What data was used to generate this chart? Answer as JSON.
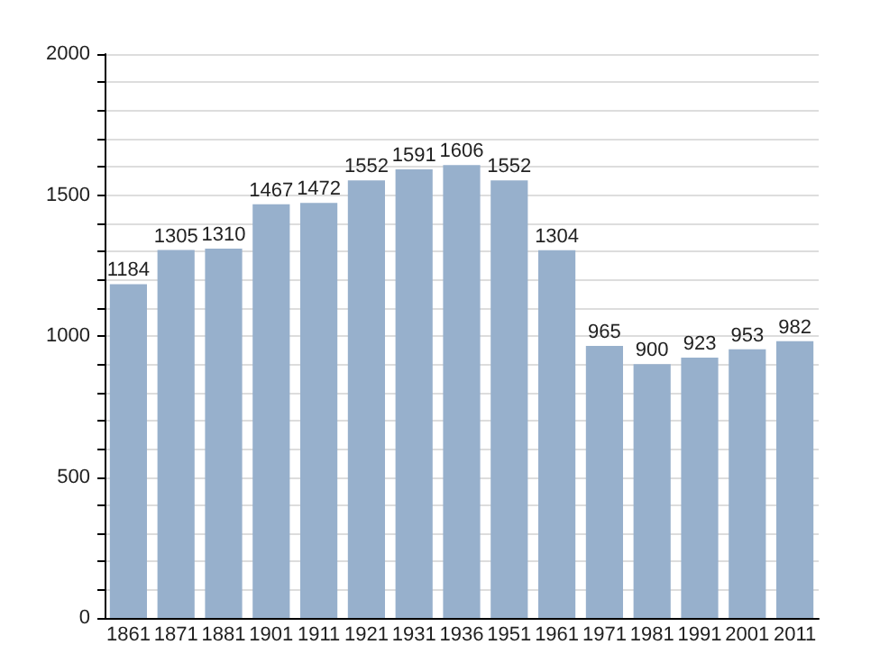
{
  "chart_data": {
    "type": "bar",
    "categories": [
      "1861",
      "1871",
      "1881",
      "1901",
      "1911",
      "1921",
      "1931",
      "1936",
      "1951",
      "1961",
      "1971",
      "1981",
      "1991",
      "2001",
      "2011"
    ],
    "values": [
      1184,
      1305,
      1310,
      1467,
      1472,
      1552,
      1591,
      1606,
      1552,
      1304,
      965,
      900,
      923,
      953,
      982
    ],
    "color": "#97b0cc",
    "data_labels": true,
    "grid": true,
    "ylim": [
      0,
      2000
    ],
    "yticks": [
      0,
      {
        "value": 100,
        "label": null
      },
      {
        "value": 200,
        "label": null
      },
      {
        "value": 300,
        "label": null
      },
      {
        "value": 400,
        "label": null
      },
      500,
      {
        "value": 600,
        "label": null
      },
      {
        "value": 700,
        "label": null
      },
      {
        "value": 800,
        "label": null
      },
      {
        "value": 900,
        "label": null
      },
      1000,
      {
        "value": 1100,
        "label": null
      },
      {
        "value": 1200,
        "label": null
      },
      {
        "value": 1300,
        "label": null
      },
      {
        "value": 1400,
        "label": null
      },
      1500,
      {
        "value": 1600,
        "label": null
      },
      {
        "value": 1700,
        "label": null
      },
      {
        "value": 1800,
        "label": null
      },
      {
        "value": 1900,
        "label": null
      },
      2000
    ]
  }
}
